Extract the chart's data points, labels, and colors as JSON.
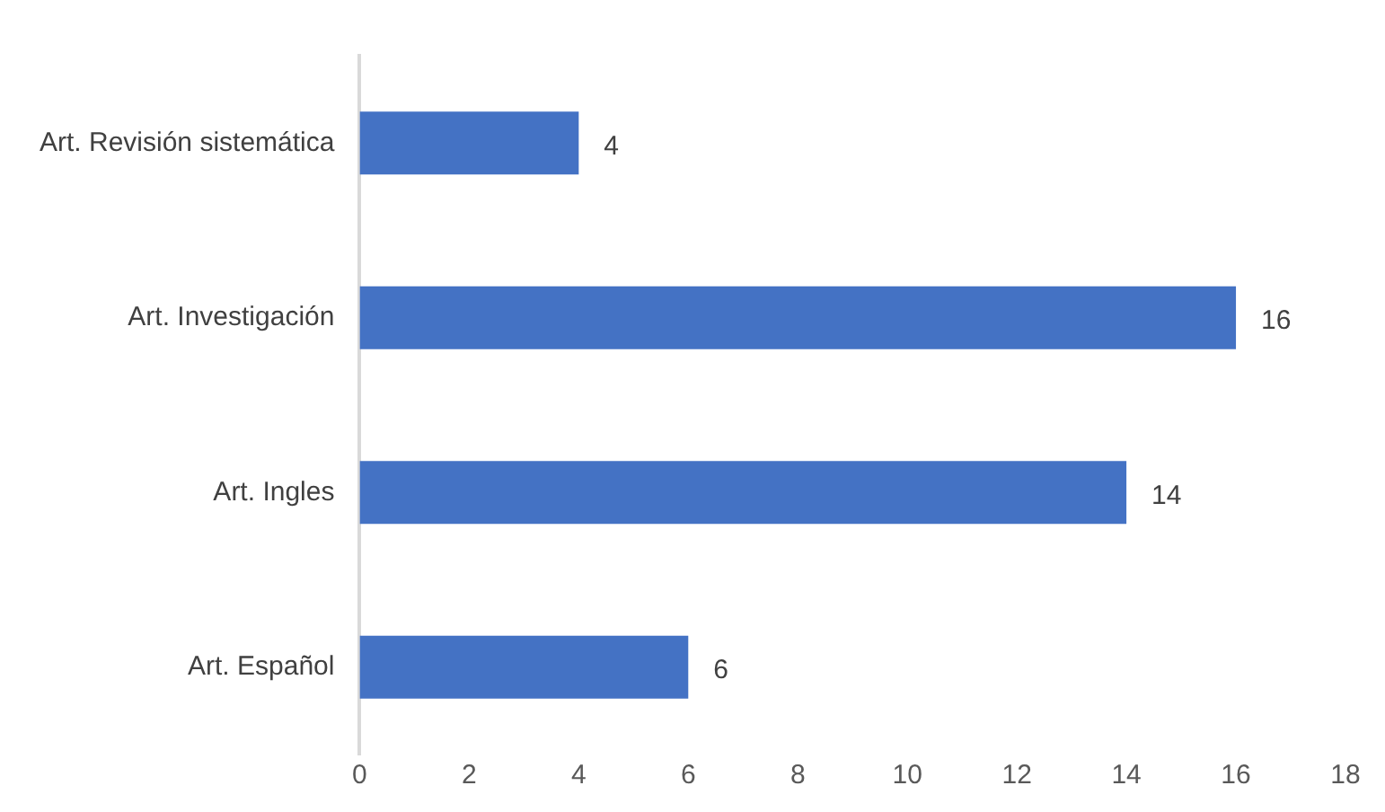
{
  "chart_data": {
    "type": "bar",
    "orientation": "horizontal",
    "categories": [
      "Art. Revisión sistemática",
      "Art. Investigación",
      "Art. Ingles",
      "Art. Español"
    ],
    "values": [
      4,
      16,
      14,
      6
    ],
    "color": "#4472c4",
    "xlim": [
      0,
      18
    ],
    "xticks": [
      0,
      2,
      4,
      6,
      8,
      10,
      12,
      14,
      16,
      18
    ],
    "grid": false,
    "legend": false,
    "data_labels": true
  }
}
